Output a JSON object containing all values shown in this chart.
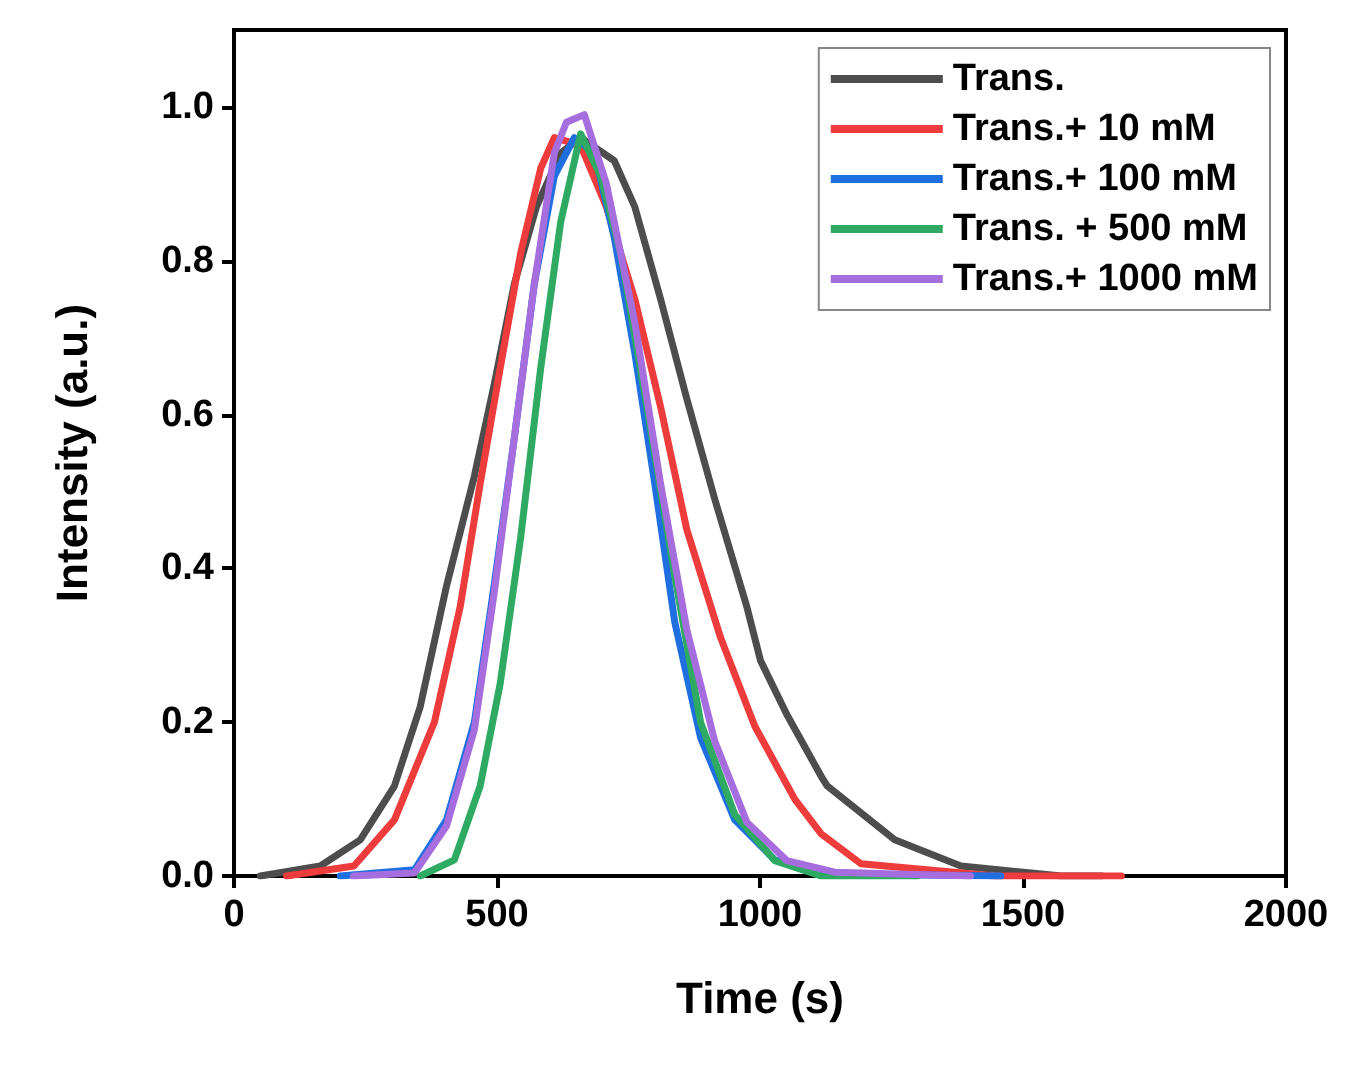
{
  "chart_data": {
    "type": "line",
    "xlabel": "Time (s)",
    "ylabel": "Intensity (a.u.)",
    "xlim": [
      0,
      2000
    ],
    "ylim": [
      0,
      1.1
    ],
    "xticks": [
      0,
      500,
      1000,
      1500,
      2000
    ],
    "yticks": [
      {
        "value": 0,
        "label": "0.0"
      },
      0.2,
      0.4,
      0.6,
      0.8,
      {
        "value": 1,
        "label": "1.0"
      }
    ],
    "grid": false,
    "legend": "top right",
    "marker": "none",
    "line_style": "solid",
    "series": [
      {
        "name": "Trans.",
        "color": "#4d4d4d",
        "x": [
          50,
          164,
          240,
          305,
          354,
          404,
          457,
          495,
          533,
          575,
          621,
          659,
          723,
          762,
          811,
          861,
          914,
          975,
          1001,
          1051,
          1116,
          1128,
          1256,
          1382,
          1573,
          1650
        ],
        "values": [
          0,
          0.013,
          0.047,
          0.117,
          0.22,
          0.377,
          0.52,
          0.64,
          0.77,
          0.87,
          0.94,
          0.96,
          0.93,
          0.87,
          0.75,
          0.62,
          0.49,
          0.35,
          0.28,
          0.21,
          0.13,
          0.117,
          0.047,
          0.013,
          0,
          0
        ]
      },
      {
        "name": "Trans.+ 10 mM",
        "color": "#ee3b3b",
        "x": [
          100,
          228,
          305,
          381,
          430,
          468,
          506,
          545,
          583,
          609,
          659,
          708,
          762,
          811,
          861,
          925,
          990,
          1066,
          1116,
          1192,
          1447,
          1687
        ],
        "values": [
          0,
          0.013,
          0.073,
          0.2,
          0.35,
          0.51,
          0.66,
          0.81,
          0.92,
          0.96,
          0.95,
          0.87,
          0.75,
          0.61,
          0.45,
          0.31,
          0.195,
          0.1,
          0.055,
          0.016,
          0,
          0
        ]
      },
      {
        "name": "Trans.+ 100 mM",
        "color": "#1f6fe0",
        "x": [
          202,
          343,
          404,
          457,
          495,
          533,
          571,
          609,
          647,
          685,
          723,
          762,
          800,
          838,
          887,
          952,
          1028,
          1116,
          1458
        ],
        "values": [
          0,
          0.008,
          0.073,
          0.2,
          0.38,
          0.57,
          0.77,
          0.91,
          0.96,
          0.94,
          0.83,
          0.68,
          0.51,
          0.33,
          0.18,
          0.073,
          0.021,
          0.003,
          0
        ]
      },
      {
        "name": "Trans. + 500 mM",
        "color": "#2eaa62",
        "x": [
          354,
          419,
          468,
          506,
          545,
          583,
          621,
          659,
          697,
          735,
          785,
          838,
          887,
          952,
          1028,
          1116,
          1300
        ],
        "values": [
          0,
          0.021,
          0.117,
          0.25,
          0.44,
          0.66,
          0.85,
          0.965,
          0.91,
          0.81,
          0.61,
          0.39,
          0.2,
          0.08,
          0.02,
          0,
          0
        ]
      },
      {
        "name": "Trans.+ 1000 mM",
        "color": "#a66ddf",
        "x": [
          227,
          343,
          404,
          457,
          495,
          533,
          571,
          609,
          632,
          666,
          708,
          762,
          811,
          861,
          914,
          975,
          1051,
          1142,
          1400
        ],
        "values": [
          0,
          0.004,
          0.065,
          0.19,
          0.37,
          0.57,
          0.77,
          0.94,
          0.98,
          0.99,
          0.9,
          0.72,
          0.51,
          0.32,
          0.175,
          0.07,
          0.02,
          0.005,
          0
        ]
      }
    ]
  }
}
